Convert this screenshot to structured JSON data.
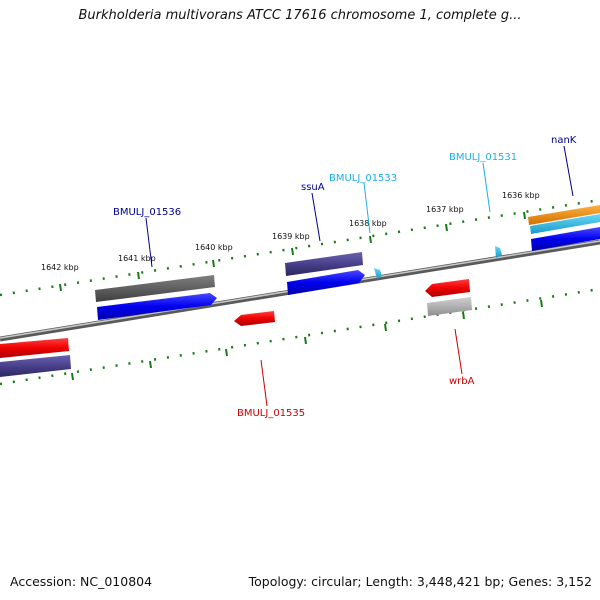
{
  "title": "Burkholderia multivorans ATCC 17616 chromosome 1, complete g...",
  "footer": {
    "accession": "Accession: NC_010804",
    "summary": "Topology: circular; Length: 3,448,421 bp; Genes: 3,152"
  },
  "scale": {
    "ticks": [
      "1642 kbp",
      "1641 kbp",
      "1640 kbp",
      "1639 kbp",
      "1638 kbp",
      "1637 kbp",
      "1636 kbp"
    ]
  },
  "gene_labels": [
    {
      "name": "BMULJ_01536",
      "color": "#00008b"
    },
    {
      "name": "ssuA",
      "color": "#00008b"
    },
    {
      "name": "BMULJ_01533",
      "color": "#1eaee8"
    },
    {
      "name": "BMULJ_01531",
      "color": "#1eaee8"
    },
    {
      "name": "nanK",
      "color": "#00008b"
    },
    {
      "name": "BMULJ_01535",
      "color": "#cc0000"
    },
    {
      "name": "wrbA",
      "color": "#cc0000"
    }
  ],
  "colors": {
    "cds_forward": "#0000ee",
    "gene_dark": "#48408a",
    "gene_grey": "#5f5f5f",
    "cds_reverse": "#ee0000",
    "pseudo_grey": "#b0b0b0",
    "rna_cyan": "#2ab6e0",
    "orange": "#f08a10",
    "tick_green": "#1a7a1a",
    "backbone": "#8a8a8a"
  }
}
